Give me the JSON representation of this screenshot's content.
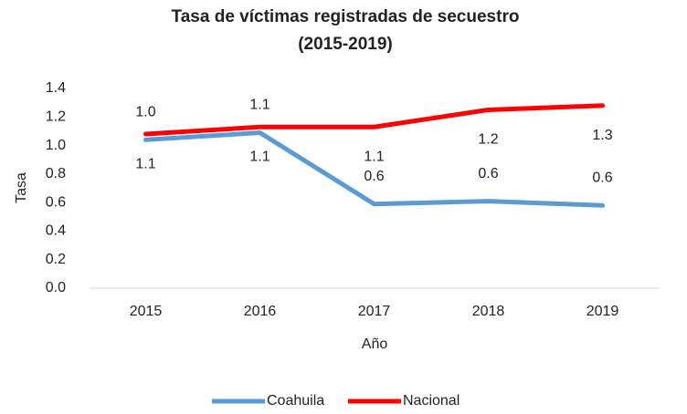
{
  "chart_data": {
    "type": "line",
    "title": "Tasa de víctimas registradas de secuestro",
    "subtitle": "(2015-2019)",
    "x_label": "Año",
    "y_label": "Tasa",
    "categories": [
      "2015",
      "2016",
      "2017",
      "2018",
      "2019"
    ],
    "series": [
      {
        "name": "Coahuila",
        "color": "#5b9bd5",
        "values": [
          1.04,
          1.09,
          0.59,
          0.61,
          0.58
        ],
        "value_labels": [
          "1.0",
          "1.1",
          "0.6",
          "0.6",
          "0.6"
        ]
      },
      {
        "name": "Nacional",
        "color": "#ff0000",
        "values": [
          1.08,
          1.13,
          1.13,
          1.25,
          1.28
        ],
        "value_labels": [
          "1.1",
          "1.1",
          "1.1",
          "1.2",
          "1.3"
        ]
      }
    ],
    "ylim": [
      0,
      1.4
    ],
    "yticks": [
      {
        "value": 0,
        "label": "0.0"
      },
      {
        "value": 0.2,
        "label": "0.2"
      },
      {
        "value": 0.4,
        "label": "0.4"
      },
      {
        "value": 0.6,
        "label": "0.6"
      },
      {
        "value": 0.8,
        "label": "0.8"
      },
      {
        "value": 1,
        "label": "1.0"
      },
      {
        "value": 1.2,
        "label": "1.2"
      },
      {
        "value": 1.4,
        "label": "1.4"
      }
    ],
    "grid": false,
    "legend": "bottom"
  }
}
